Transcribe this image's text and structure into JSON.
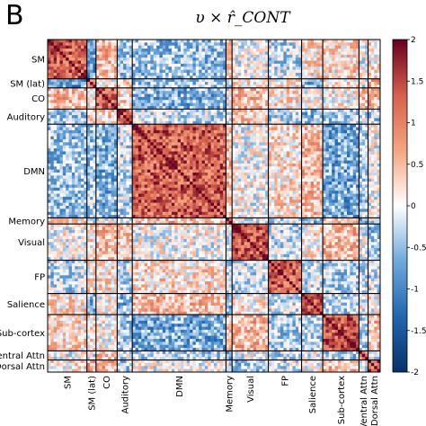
{
  "panel_letter": "B",
  "chart_data": {
    "type": "heatmap",
    "title": "υ × r̂_CONT",
    "networks": [
      {
        "label": "SM",
        "size": 13
      },
      {
        "label": "SM (lat)",
        "size": 3
      },
      {
        "label": "CO",
        "size": 7
      },
      {
        "label": "Auditory",
        "size": 5
      },
      {
        "label": "DMN",
        "size": 31
      },
      {
        "label": "Memory",
        "size": 2
      },
      {
        "label": "Visual",
        "size": 12
      },
      {
        "label": "FP",
        "size": 11
      },
      {
        "label": "Salience",
        "size": 7
      },
      {
        "label": "Sub-cortex",
        "size": 12
      },
      {
        "label": "Ventral Attn",
        "size": 3
      },
      {
        "label": "Dorsal Attn",
        "size": 4
      }
    ],
    "colorbar": {
      "min": -2,
      "max": 2,
      "ticks": [
        "2",
        "1.5",
        "1",
        "0.5",
        "0",
        "-0.5",
        "-1",
        "-1.5",
        "-2"
      ],
      "colormap": [
        "#08306b",
        "#2166ac",
        "#6fa8dc",
        "#ffffff",
        "#f4a582",
        "#d6604d",
        "#67001f"
      ]
    },
    "legend": "none",
    "grid": false
  }
}
